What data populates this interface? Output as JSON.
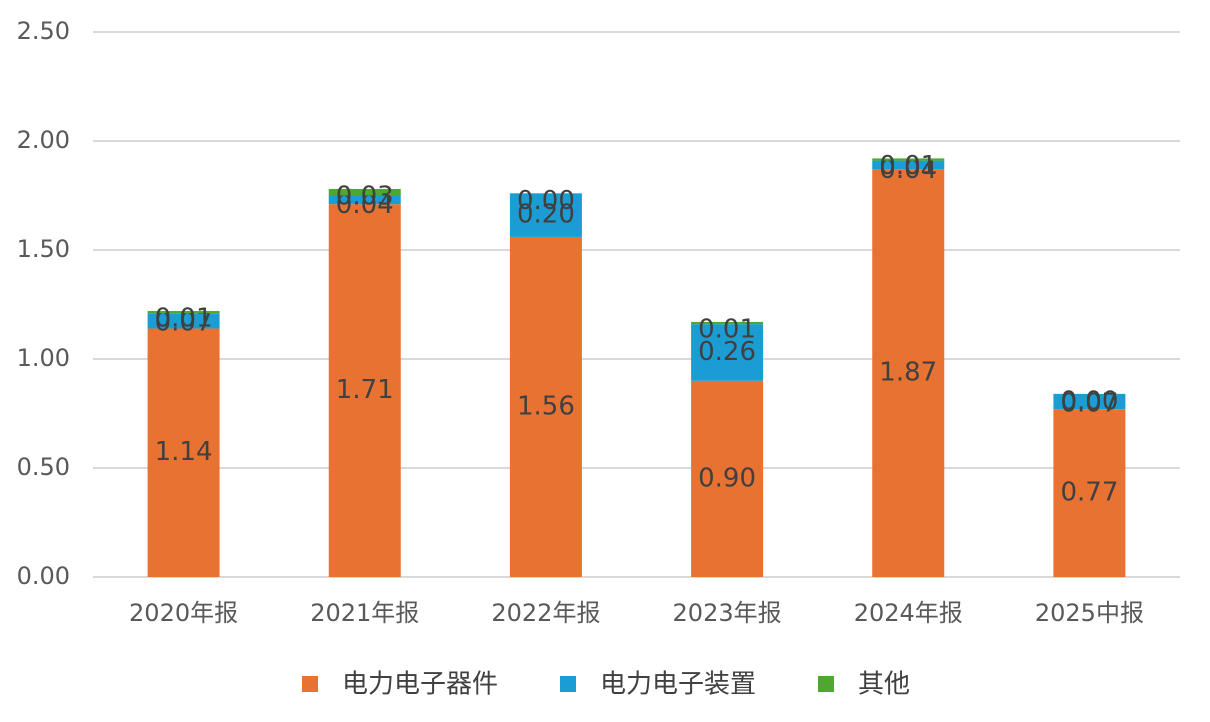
{
  "chart_data": {
    "type": "stacked_bar",
    "categories": [
      "2020年报",
      "2021年报",
      "2022年报",
      "2023年报",
      "2024年报",
      "2025中报"
    ],
    "series": [
      {
        "name": "电力电子器件",
        "color": "#e87232",
        "values": [
          1.14,
          1.71,
          1.56,
          0.9,
          1.87,
          0.77
        ],
        "value_labels": [
          "1.14",
          "1.71",
          "1.56",
          "0.90",
          "1.87",
          "0.77"
        ]
      },
      {
        "name": "电力电子装置",
        "color": "#1b9dd4",
        "values": [
          0.07,
          0.04,
          0.2,
          0.26,
          0.04,
          0.07
        ],
        "value_labels": [
          "0.07",
          "0.04",
          "0.20",
          "0.26",
          "0.04",
          "0.07"
        ]
      },
      {
        "name": "其他",
        "color": "#4ea72e",
        "values": [
          0.01,
          0.03,
          0.0,
          0.01,
          0.01,
          0.0
        ],
        "value_labels": [
          "0.01",
          "0.03",
          "0.00",
          "0.01",
          "0.01",
          "0.00"
        ]
      }
    ],
    "ylim": [
      0,
      2.5
    ],
    "yticks": [
      {
        "value": 0,
        "label": "0.00"
      },
      {
        "value": 0.5,
        "label": "0.50"
      },
      {
        "value": 1,
        "label": "1.00"
      },
      {
        "value": 1.5,
        "label": "1.50"
      },
      {
        "value": 2,
        "label": "2.00"
      },
      {
        "value": 2.5,
        "label": "2.50"
      }
    ],
    "grid": true,
    "legend": "bottom"
  }
}
